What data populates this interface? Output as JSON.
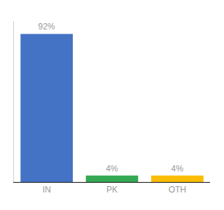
{
  "chart_data": {
    "type": "bar",
    "categories": [
      "IN",
      "PK",
      "OTH"
    ],
    "values": [
      92,
      4,
      4
    ],
    "value_labels": [
      "92%",
      "4%",
      "4%"
    ],
    "colors": [
      "#4472C4",
      "#34A853",
      "#FBBC04"
    ],
    "data_labels": true,
    "ylim": [
      0,
      100
    ],
    "yticks": [],
    "grid": false,
    "tick_labels": "x"
  }
}
